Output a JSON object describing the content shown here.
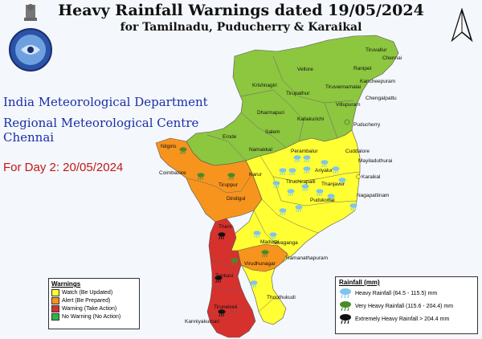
{
  "title": "Heavy Rainfall Warnings dated 19/05/2024",
  "subtitle": "for Tamilnadu, Puducherry & Karaikal",
  "org": {
    "line1": "India Meteorological Department",
    "line2": "Regional Meteorological Centre",
    "line3": "Chennai"
  },
  "day_label": "For Day 2: 20/05/2024",
  "colors": {
    "watch": "#ffff33",
    "alert": "#f7941d",
    "warning": "#d6312d",
    "no_warning": "#8dc63f",
    "water": "#f4f7fb"
  },
  "warnings_legend": {
    "title": "Warnings",
    "items": [
      {
        "label": "Watch (Be Updated)",
        "color": "#ffff33"
      },
      {
        "label": "Alert (Be Prepared)",
        "color": "#f7941d"
      },
      {
        "label": "Warning (Take Action)",
        "color": "#d6312d"
      },
      {
        "label": "No Warning (No Action)",
        "color": "#2db34a"
      }
    ]
  },
  "rainfall_legend": {
    "title": "Rainfall (mm)",
    "items": [
      {
        "label": "Heavy Rainfall (64.5 - 115.5) mm",
        "icon": "light-blue-rain-cloud-icon"
      },
      {
        "label": "Very Heavy Rainfall (115.6 - 204.4) mm",
        "icon": "green-rain-cloud-icon"
      },
      {
        "label": "Extremely Heavy Rainfall > 204.4 mm",
        "icon": "black-rain-cloud-icon"
      }
    ]
  },
  "districts": [
    {
      "name": "Tiruvallur"
    },
    {
      "name": "Chennai"
    },
    {
      "name": "Vellore"
    },
    {
      "name": "Ranipet"
    },
    {
      "name": "Kancheepuram"
    },
    {
      "name": "Chengalpattu"
    },
    {
      "name": "Tiruvannamalai"
    },
    {
      "name": "Krishnagiri"
    },
    {
      "name": "Tirupathur"
    },
    {
      "name": "Villupuram"
    },
    {
      "name": "Dharmapuri"
    },
    {
      "name": "Kallakurichi"
    },
    {
      "name": "Puducherry"
    },
    {
      "name": "Salem"
    },
    {
      "name": "Erode"
    },
    {
      "name": "Namakkal"
    },
    {
      "name": "Perambalur"
    },
    {
      "name": "Cuddalore"
    },
    {
      "name": "Nilgiris"
    },
    {
      "name": "Mayiladuthurai"
    },
    {
      "name": "Ariyalur"
    },
    {
      "name": "Coimbatore"
    },
    {
      "name": "Tiruppur"
    },
    {
      "name": "Karur"
    },
    {
      "name": "Tiruchirapalli"
    },
    {
      "name": "Thanjavur"
    },
    {
      "name": "Karaikal"
    },
    {
      "name": "Dindigul"
    },
    {
      "name": "Pudukottai"
    },
    {
      "name": "Nagapattinam"
    },
    {
      "name": "Theni"
    },
    {
      "name": "Madurai"
    },
    {
      "name": "Sivaganga"
    },
    {
      "name": "Virudhunagar"
    },
    {
      "name": "Ramanathapuram"
    },
    {
      "name": "Tenkasi"
    },
    {
      "name": "Thoothukudi"
    },
    {
      "name": "Tirunelveli"
    },
    {
      "name": "Kanniyakumari"
    }
  ]
}
